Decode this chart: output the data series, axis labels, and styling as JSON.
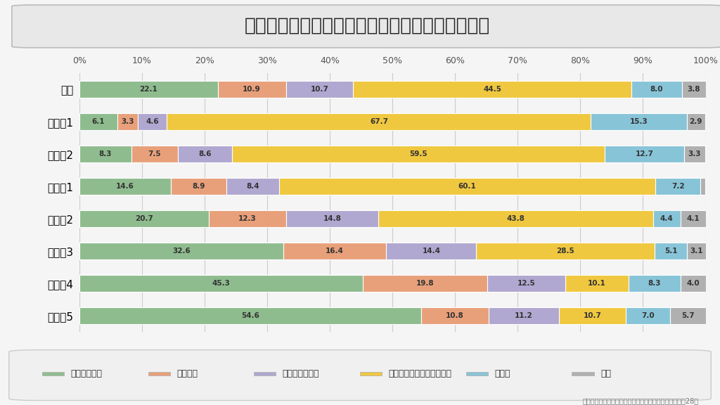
{
  "title": "介護をする人が介護にかける時間はどれぐらい？",
  "categories": [
    "総数",
    "要支援1",
    "要支援2",
    "要介護1",
    "要介護2",
    "要介護3",
    "要介護4",
    "要介護5"
  ],
  "series_labels": [
    "ほとんど終日",
    "半日程度",
    "２〜３時間程度",
    "必要なときに手をかす程度",
    "その他",
    "不詳"
  ],
  "colors": [
    "#8fbc8f",
    "#e8a07a",
    "#b0a8d0",
    "#f0c840",
    "#88c4d8",
    "#b0b0b0"
  ],
  "data": [
    [
      22.1,
      10.9,
      10.7,
      44.5,
      8.0,
      3.8
    ],
    [
      6.1,
      3.3,
      4.6,
      67.7,
      15.3,
      2.9
    ],
    [
      8.3,
      7.5,
      8.6,
      59.5,
      12.7,
      3.3
    ],
    [
      14.6,
      8.9,
      8.4,
      60.1,
      7.2,
      0.7
    ],
    [
      20.7,
      12.3,
      14.8,
      43.8,
      4.4,
      4.1
    ],
    [
      32.6,
      16.4,
      14.4,
      28.5,
      5.1,
      3.1
    ],
    [
      45.3,
      19.8,
      12.5,
      10.1,
      8.3,
      4.0
    ],
    [
      54.6,
      10.8,
      11.2,
      10.7,
      7.0,
      5.7
    ]
  ],
  "source_text": "資料：厚生労働省「国民生活基礎調査の概況」ゆる平成28年",
  "bg_color": "#f5f5f5",
  "title_bg_color": "#e8e8e8",
  "legend_bg_color": "#f0f0f0",
  "bar_height": 0.52,
  "figsize": [
    10.24,
    5.76
  ],
  "dpi": 100,
  "label_threshold": 1.5
}
